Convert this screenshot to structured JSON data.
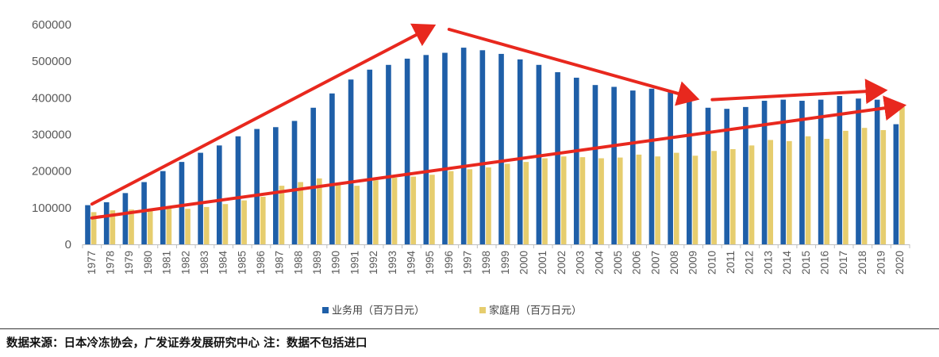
{
  "chart_data": {
    "type": "bar",
    "title": "",
    "xlabel": "",
    "ylabel": "",
    "ylim": [
      0,
      600000
    ],
    "yticks": [
      0,
      100000,
      200000,
      300000,
      400000,
      500000,
      600000
    ],
    "grid": false,
    "legend_position": "bottom",
    "categories": [
      "1977",
      "1978",
      "1979",
      "1980",
      "1981",
      "1982",
      "1983",
      "1984",
      "1985",
      "1986",
      "1987",
      "1988",
      "1989",
      "1990",
      "1991",
      "1992",
      "1993",
      "1994",
      "1995",
      "1996",
      "1997",
      "1998",
      "1999",
      "2000",
      "2001",
      "2002",
      "2003",
      "2004",
      "2005",
      "2006",
      "2007",
      "2008",
      "2009",
      "2010",
      "2011",
      "2012",
      "2013",
      "2014",
      "2015",
      "2016",
      "2017",
      "2018",
      "2019",
      "2020"
    ],
    "series": [
      {
        "name": "业务用（百万日元）",
        "color": "#1f5fa8",
        "values": [
          107000,
          115000,
          140000,
          170000,
          200000,
          225000,
          250000,
          270000,
          295000,
          315000,
          320000,
          337000,
          373000,
          412000,
          450000,
          477000,
          490000,
          507000,
          517000,
          523000,
          537000,
          530000,
          520000,
          505000,
          490000,
          470000,
          455000,
          435000,
          430000,
          420000,
          425000,
          415000,
          395000,
          373000,
          370000,
          375000,
          392000,
          395000,
          392000,
          395000,
          405000,
          398000,
          395000,
          328000
        ]
      },
      {
        "name": "家庭用（百万日元）",
        "color": "#e6cd6e",
        "values": [
          88000,
          93000,
          95000,
          97000,
          98000,
          97000,
          102000,
          110000,
          120000,
          130000,
          160000,
          170000,
          180000,
          165000,
          160000,
          175000,
          182000,
          185000,
          190000,
          200000,
          205000,
          210000,
          220000,
          225000,
          235000,
          240000,
          238000,
          235000,
          237000,
          245000,
          240000,
          250000,
          242000,
          255000,
          260000,
          270000,
          285000,
          282000,
          295000,
          288000,
          310000,
          318000,
          312000,
          375000
        ]
      }
    ],
    "annotations": {
      "trend_arrow_color": "#e8281e",
      "trend_arrows": [
        {
          "from": {
            "x": "1977",
            "y": 110000
          },
          "to": {
            "x": "1995",
            "y": 592000
          }
        },
        {
          "from": {
            "x": "1996",
            "y": 587000
          },
          "to": {
            "x": "2009",
            "y": 400000
          }
        },
        {
          "from": {
            "x": "2010",
            "y": 395000
          },
          "to": {
            "x": "2019",
            "y": 420000
          }
        },
        {
          "from": {
            "x": "1977",
            "y": 72000
          },
          "to": {
            "x": "2020",
            "y": 378000
          }
        }
      ]
    }
  },
  "footer": {
    "source_text": "数据来源：日本冷冻协会，广发证券发展研究中心  注：数据不包括进口"
  }
}
